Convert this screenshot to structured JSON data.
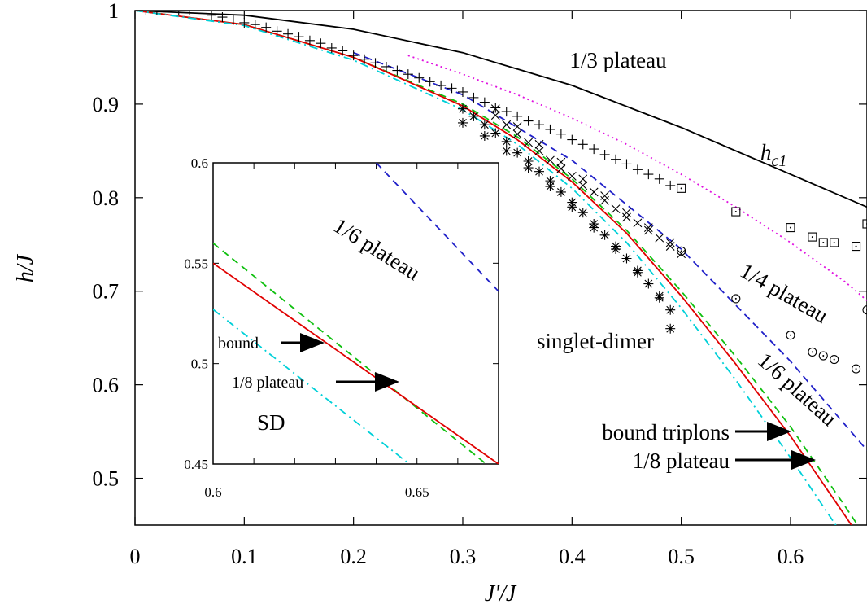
{
  "chart_data": {
    "type": "line",
    "xlabel": "J'/J",
    "ylabel": "h/J",
    "xlim": [
      0,
      0.67
    ],
    "ylim": [
      0.45,
      1.0
    ],
    "xticks": [
      "0",
      "0.1",
      "0.2",
      "0.3",
      "0.4",
      "0.5",
      "0.6"
    ],
    "yticks": [
      "0.5",
      "0.6",
      "0.7",
      "0.8",
      "0.9",
      "1"
    ],
    "grid": false,
    "legend": "none",
    "annotations": {
      "plateau_1_3": "1/3 plateau",
      "hc1_main": "h",
      "hc1_sub": "c1",
      "plateau_1_4": "1/4 plateau",
      "plateau_1_6": "1/6 plateau",
      "singlet_dimer": "singlet-dimer",
      "bound_triplons": "bound triplons",
      "plateau_1_8": "1/8 plateau"
    },
    "colors": {
      "hc1": "#000000",
      "plateau_1_4": "#e010e0",
      "plateau_1_6": "#2020c8",
      "bound": "#10c010",
      "plateau_1_8": "#e00000",
      "singlet_dimer": "#00d0d8"
    },
    "series": [
      {
        "key": "hc1",
        "style": "solid",
        "x": [
          0,
          0.1,
          0.2,
          0.3,
          0.4,
          0.5,
          0.6,
          0.67
        ],
        "y": [
          1.0,
          0.995,
          0.98,
          0.955,
          0.92,
          0.875,
          0.825,
          0.79
        ]
      },
      {
        "key": "plateau_1_4",
        "style": "dotted",
        "x": [
          0.25,
          0.3,
          0.35,
          0.4,
          0.45,
          0.5,
          0.55,
          0.6,
          0.65,
          0.67
        ],
        "y": [
          0.952,
          0.932,
          0.91,
          0.885,
          0.857,
          0.825,
          0.79,
          0.752,
          0.71,
          0.69
        ]
      },
      {
        "key": "plateau_1_6",
        "style": "dashed",
        "x": [
          0.2,
          0.3,
          0.4,
          0.5,
          0.6,
          0.67
        ],
        "y": [
          0.955,
          0.91,
          0.84,
          0.745,
          0.625,
          0.53
        ]
      },
      {
        "key": "bound",
        "style": "dashed",
        "x": [
          0,
          0.1,
          0.2,
          0.3,
          0.35,
          0.4,
          0.45,
          0.5,
          0.55,
          0.6,
          0.65,
          0.67
        ],
        "y": [
          1.0,
          0.985,
          0.95,
          0.9,
          0.865,
          0.82,
          0.765,
          0.7,
          0.63,
          0.555,
          0.47,
          0.435
        ]
      },
      {
        "key": "plateau_1_8",
        "style": "solid",
        "x": [
          0,
          0.1,
          0.2,
          0.3,
          0.35,
          0.4,
          0.45,
          0.5,
          0.55,
          0.6,
          0.65,
          0.67
        ],
        "y": [
          1.0,
          0.985,
          0.95,
          0.898,
          0.862,
          0.817,
          0.762,
          0.695,
          0.622,
          0.545,
          0.46,
          0.425
        ]
      },
      {
        "key": "singlet_dimer",
        "style": "dashdot",
        "x": [
          0,
          0.1,
          0.2,
          0.3,
          0.35,
          0.4,
          0.45,
          0.5,
          0.55,
          0.6,
          0.65,
          0.67
        ],
        "y": [
          1.0,
          0.984,
          0.947,
          0.894,
          0.857,
          0.81,
          0.752,
          0.682,
          0.605,
          0.522,
          0.435,
          0.4
        ]
      }
    ],
    "points": {
      "plus": [
        [
          0.01,
          1.0
        ],
        [
          0.02,
          1.0
        ],
        [
          0.04,
          1.0
        ],
        [
          0.05,
          1.0
        ],
        [
          0.07,
          0.995
        ],
        [
          0.08,
          0.993
        ],
        [
          0.09,
          0.99
        ],
        [
          0.1,
          0.987
        ],
        [
          0.11,
          0.985
        ],
        [
          0.12,
          0.982
        ],
        [
          0.13,
          0.978
        ],
        [
          0.14,
          0.975
        ],
        [
          0.15,
          0.972
        ],
        [
          0.16,
          0.968
        ],
        [
          0.17,
          0.965
        ],
        [
          0.18,
          0.96
        ],
        [
          0.19,
          0.957
        ],
        [
          0.2,
          0.952
        ],
        [
          0.21,
          0.948
        ],
        [
          0.22,
          0.944
        ],
        [
          0.23,
          0.94
        ],
        [
          0.24,
          0.936
        ],
        [
          0.25,
          0.932
        ],
        [
          0.26,
          0.928
        ],
        [
          0.27,
          0.924
        ],
        [
          0.28,
          0.92
        ],
        [
          0.29,
          0.917
        ],
        [
          0.3,
          0.913
        ],
        [
          0.31,
          0.907
        ],
        [
          0.32,
          0.902
        ],
        [
          0.33,
          0.896
        ],
        [
          0.34,
          0.892
        ],
        [
          0.35,
          0.887
        ],
        [
          0.36,
          0.882
        ],
        [
          0.37,
          0.878
        ],
        [
          0.38,
          0.873
        ],
        [
          0.39,
          0.868
        ],
        [
          0.4,
          0.862
        ],
        [
          0.41,
          0.857
        ],
        [
          0.42,
          0.852
        ],
        [
          0.43,
          0.846
        ],
        [
          0.44,
          0.841
        ],
        [
          0.45,
          0.836
        ],
        [
          0.46,
          0.83
        ],
        [
          0.47,
          0.825
        ],
        [
          0.48,
          0.82
        ],
        [
          0.49,
          0.813
        ]
      ],
      "cross": [
        [
          0.33,
          0.888
        ],
        [
          0.34,
          0.878
        ],
        [
          0.35,
          0.868
        ],
        [
          0.36,
          0.859
        ],
        [
          0.37,
          0.85
        ],
        [
          0.38,
          0.84
        ],
        [
          0.39,
          0.831
        ],
        [
          0.4,
          0.823
        ],
        [
          0.41,
          0.813
        ],
        [
          0.42,
          0.806
        ],
        [
          0.43,
          0.797
        ],
        [
          0.44,
          0.788
        ],
        [
          0.45,
          0.779
        ],
        [
          0.46,
          0.773
        ],
        [
          0.47,
          0.765
        ],
        [
          0.48,
          0.757
        ],
        [
          0.49,
          0.748
        ],
        [
          0.5,
          0.74
        ],
        [
          0.33,
          0.895
        ],
        [
          0.35,
          0.876
        ],
        [
          0.37,
          0.857
        ],
        [
          0.39,
          0.838
        ],
        [
          0.41,
          0.82
        ],
        [
          0.43,
          0.802
        ],
        [
          0.45,
          0.784
        ],
        [
          0.47,
          0.768
        ],
        [
          0.49,
          0.752
        ]
      ],
      "star": [
        [
          0.3,
          0.895
        ],
        [
          0.31,
          0.887
        ],
        [
          0.32,
          0.878
        ],
        [
          0.33,
          0.869
        ],
        [
          0.34,
          0.86
        ],
        [
          0.35,
          0.848
        ],
        [
          0.36,
          0.839
        ],
        [
          0.37,
          0.828
        ],
        [
          0.38,
          0.818
        ],
        [
          0.39,
          0.806
        ],
        [
          0.4,
          0.795
        ],
        [
          0.41,
          0.784
        ],
        [
          0.42,
          0.772
        ],
        [
          0.43,
          0.76
        ],
        [
          0.44,
          0.748
        ],
        [
          0.45,
          0.735
        ],
        [
          0.46,
          0.722
        ],
        [
          0.47,
          0.708
        ],
        [
          0.48,
          0.695
        ],
        [
          0.49,
          0.68
        ],
        [
          0.49,
          0.66
        ],
        [
          0.3,
          0.88
        ],
        [
          0.32,
          0.866
        ],
        [
          0.34,
          0.85
        ],
        [
          0.36,
          0.832
        ],
        [
          0.38,
          0.812
        ],
        [
          0.4,
          0.79
        ],
        [
          0.42,
          0.768
        ],
        [
          0.44,
          0.745
        ],
        [
          0.46,
          0.72
        ],
        [
          0.48,
          0.693
        ]
      ],
      "square": [
        [
          0.5,
          0.81
        ],
        [
          0.55,
          0.785
        ],
        [
          0.6,
          0.768
        ],
        [
          0.62,
          0.758
        ],
        [
          0.63,
          0.752
        ],
        [
          0.64,
          0.752
        ],
        [
          0.66,
          0.748
        ],
        [
          0.67,
          0.772
        ]
      ],
      "circle": [
        [
          0.5,
          0.743
        ],
        [
          0.55,
          0.692
        ],
        [
          0.6,
          0.653
        ],
        [
          0.62,
          0.635
        ],
        [
          0.63,
          0.631
        ],
        [
          0.64,
          0.627
        ],
        [
          0.66,
          0.617
        ],
        [
          0.67,
          0.68
        ]
      ]
    },
    "inset": {
      "xlim": [
        0.6,
        0.67
      ],
      "ylim": [
        0.45,
        0.6
      ],
      "xticks": [
        "0.6",
        "0.65"
      ],
      "yticks": [
        "0.45",
        "0.5",
        "0.55",
        "0.6"
      ],
      "annotations": {
        "plateau_1_6": "1/6 plateau",
        "bound": "bound",
        "plateau_1_8": "1/8 plateau",
        "sd": "SD"
      },
      "series": [
        {
          "key": "plateau_1_6",
          "style": "dashed",
          "x": [
            0.64,
            0.67
          ],
          "y": [
            0.6,
            0.536
          ]
        },
        {
          "key": "bound",
          "style": "dashed",
          "x": [
            0.6,
            0.67
          ],
          "y": [
            0.56,
            0.445
          ]
        },
        {
          "key": "plateau_1_8",
          "style": "solid",
          "x": [
            0.6,
            0.67
          ],
          "y": [
            0.55,
            0.45
          ]
        },
        {
          "key": "singlet_dimer",
          "style": "dashdot",
          "x": [
            0.6,
            0.67
          ],
          "y": [
            0.527,
            0.415
          ]
        }
      ]
    }
  }
}
